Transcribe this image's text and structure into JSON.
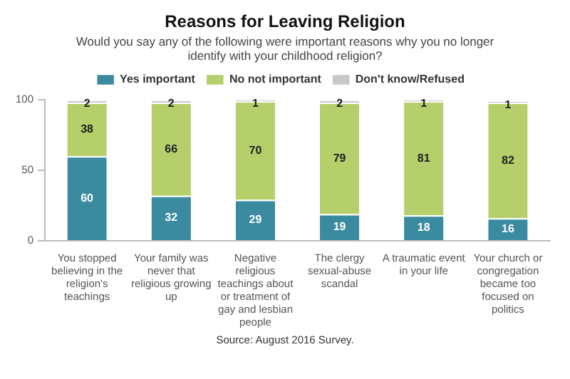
{
  "chart_data": {
    "type": "bar",
    "title": "Reasons for Leaving Religion",
    "subtitle": "Would you say any of the following were important reasons why you no longer identify with your childhood religion?",
    "categories": [
      "You stopped believing in the religion's teachings",
      "Your family was never that religious growing up",
      "Negative religious teachings about or treatment of gay and lesbian people",
      "The clergy sexual-abuse scandal",
      "A traumatic event in your life",
      "Your church or congregation became too focused on politics"
    ],
    "series": [
      {
        "name": "Yes important",
        "color": "#3a8aa0",
        "values": [
          60,
          32,
          29,
          19,
          18,
          16
        ]
      },
      {
        "name": "No not important",
        "color": "#b5cf6b",
        "values": [
          38,
          66,
          70,
          79,
          81,
          82
        ]
      },
      {
        "name": "Don't know/Refused",
        "color": "#c8c8c8",
        "values": [
          2,
          2,
          1,
          2,
          1,
          1
        ]
      }
    ],
    "stacked": true,
    "ylim": [
      0,
      100
    ],
    "yticks": [
      0,
      50,
      100
    ],
    "grid": false,
    "legend": "top",
    "data_labels": true,
    "annotations": [
      "Source: August 2016 Survey."
    ]
  }
}
